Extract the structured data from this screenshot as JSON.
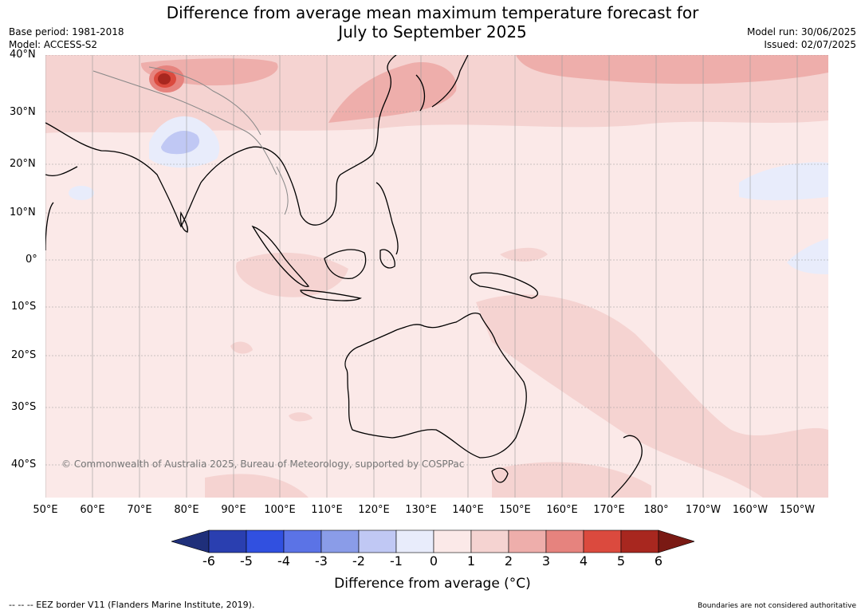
{
  "title_line1": "Difference from average mean maximum temperature forecast for",
  "title_line2": "July to September 2025",
  "base_period": "Base period: 1981-2018",
  "model": "Model: ACCESS-S2",
  "model_run": "Model run: 30/06/2025",
  "issued": "Issued: 02/07/2025",
  "lat_labels": [
    "40°N",
    "30°N",
    "20°N",
    "10°N",
    "0°",
    "10°S",
    "20°S",
    "30°S",
    "40°S"
  ],
  "lon_labels": [
    "50°E",
    "60°E",
    "70°E",
    "80°E",
    "90°E",
    "100°E",
    "110°E",
    "120°E",
    "130°E",
    "140°E",
    "150°E",
    "160°E",
    "170°E",
    "180°",
    "170°W",
    "160°W",
    "150°W"
  ],
  "copyright": "© Commonwealth of Australia 2025, Bureau of Meteorology, supported by COSPPac",
  "colorbar": {
    "ticks": [
      "-6",
      "-5",
      "-4",
      "-3",
      "-2",
      "-1",
      "0",
      "1",
      "2",
      "3",
      "4",
      "5",
      "6"
    ],
    "colors": [
      "#1f2f7a",
      "#2a3fb0",
      "#3150e0",
      "#5b73e6",
      "#8a9ce8",
      "#c0c8f4",
      "#e8ecfb",
      "#fbe9e8",
      "#f5d3d1",
      "#eeaeab",
      "#e6837e",
      "#db4a3e",
      "#a8271f",
      "#7a1a14"
    ],
    "title": "Difference from average (°C)"
  },
  "footer_left": "-- -- -- EEZ border V11 (Flanders Marine Institute, 2019).",
  "footer_right": "Boundaries are not considered authoritative"
}
